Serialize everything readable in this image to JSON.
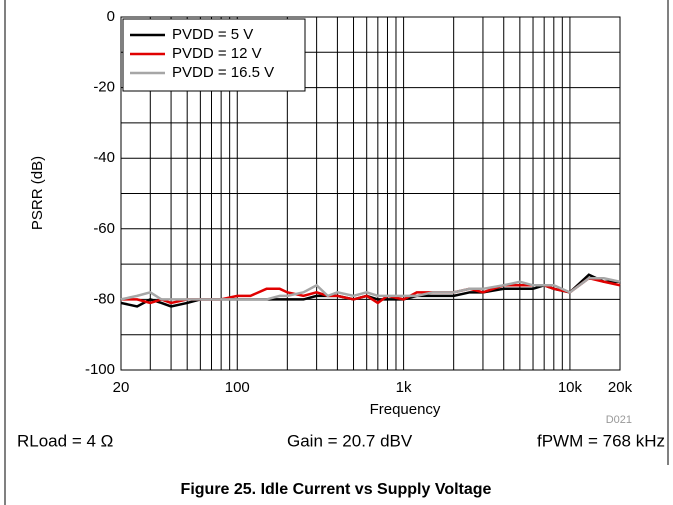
{
  "chart_data": {
    "type": "line",
    "caption": "Figure 25. Idle Current vs Supply Voltage",
    "xlabel": "Frequency",
    "ylabel": "PSRR (dB)",
    "code": "D021",
    "annotations": [
      "RLoad = 4 Ω",
      "Gain = 20.7 dBV",
      "fPWM = 768 kHz"
    ],
    "xscale": "log",
    "grid": true,
    "legend": "upper left",
    "xlim": [
      20,
      20000
    ],
    "ylim": [
      -100,
      0
    ],
    "xticks": [
      20,
      100,
      {
        "value": 1000,
        "label": "1k"
      },
      {
        "value": 10000,
        "label": "10k"
      },
      {
        "value": 20000,
        "label": "20k"
      }
    ],
    "xgrid_minor": [
      30,
      40,
      50,
      60,
      70,
      80,
      90,
      200,
      300,
      400,
      500,
      600,
      700,
      800,
      900,
      2000,
      3000,
      4000,
      5000,
      6000,
      7000,
      8000,
      9000
    ],
    "yticks": [
      -100,
      -80,
      -60,
      -40,
      -20,
      0
    ],
    "ygrid_minor": [
      -90,
      -70,
      -50,
      -30,
      -10
    ],
    "x": [
      20,
      25,
      30,
      35,
      40,
      50,
      60,
      70,
      80,
      100,
      120,
      150,
      180,
      200,
      250,
      300,
      350,
      400,
      500,
      600,
      700,
      800,
      1000,
      1200,
      1500,
      2000,
      2500,
      3000,
      4000,
      5000,
      6000,
      7000,
      8000,
      10000,
      13000,
      16000,
      20000
    ],
    "series": [
      {
        "name": "PVDD = 5 V",
        "color": "#000000",
        "values": [
          -81,
          -82,
          -80,
          -81,
          -82,
          -81,
          -80,
          -80,
          -80,
          -80,
          -80,
          -80,
          -80,
          -80,
          -80,
          -79,
          -79,
          -79,
          -80,
          -79,
          -80,
          -80,
          -80,
          -79,
          -79,
          -79,
          -78,
          -78,
          -77,
          -77,
          -77,
          -76,
          -77,
          -78,
          -73,
          -75,
          -75
        ]
      },
      {
        "name": "PVDD = 12 V",
        "color": "#e00000",
        "values": [
          -80,
          -80,
          -81,
          -80,
          -81,
          -80,
          -80,
          -80,
          -80,
          -79,
          -79,
          -77,
          -77,
          -78,
          -79,
          -78,
          -79,
          -79,
          -80,
          -79,
          -81,
          -79,
          -80,
          -78,
          -78,
          -78,
          -77,
          -78,
          -76,
          -76,
          -76,
          -76,
          -77,
          -78,
          -74,
          -75,
          -76
        ]
      },
      {
        "name": "PVDD = 16.5 V",
        "color": "#a6a6a6",
        "values": [
          -80,
          -79,
          -78,
          -80,
          -80,
          -80,
          -80,
          -80,
          -80,
          -80,
          -80,
          -80,
          -79,
          -79,
          -78,
          -76,
          -79,
          -78,
          -79,
          -78,
          -79,
          -79,
          -79,
          -79,
          -78,
          -78,
          -77,
          -77,
          -76,
          -75,
          -76,
          -76,
          -76,
          -78,
          -74,
          -74,
          -75
        ]
      }
    ]
  }
}
